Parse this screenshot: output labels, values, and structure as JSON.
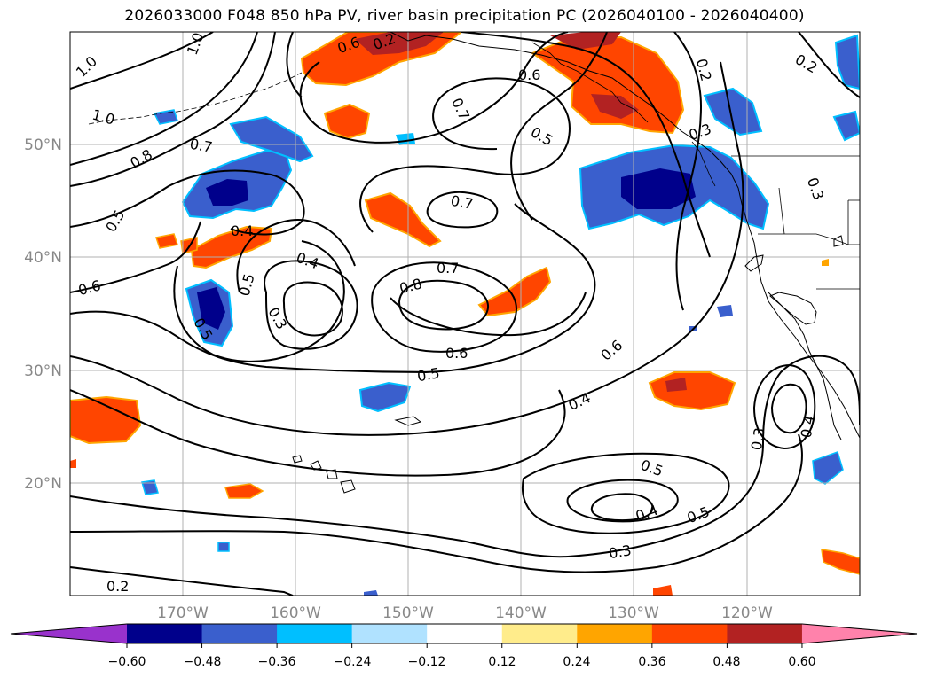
{
  "title": "2026033000 F048 850 hPa PV, river basin precipitation PC (2026040100 - 2026040400)",
  "map": {
    "lat_labels": [
      "50°N",
      "40°N",
      "30°N",
      "20°N"
    ],
    "lon_labels": [
      "170°W",
      "160°W",
      "150°W",
      "140°W",
      "130°W",
      "120°W"
    ],
    "contour_labels": [
      {
        "text": "1.0"
      },
      {
        "text": "1.0"
      },
      {
        "text": "1.0"
      },
      {
        "text": "0.6"
      },
      {
        "text": "0.8"
      },
      {
        "text": "0.7"
      },
      {
        "text": "0.6"
      },
      {
        "text": "0.7"
      },
      {
        "text": "0.5"
      },
      {
        "text": "0.2"
      },
      {
        "text": "0.2"
      },
      {
        "text": "0.3"
      },
      {
        "text": "0.3"
      },
      {
        "text": "0.5"
      },
      {
        "text": "0.4"
      },
      {
        "text": "0.7"
      },
      {
        "text": "0.4"
      },
      {
        "text": "0.8"
      },
      {
        "text": "0.7"
      },
      {
        "text": "0.6"
      },
      {
        "text": "0.5"
      },
      {
        "text": "0.3"
      },
      {
        "text": "0.5"
      },
      {
        "text": "0.6"
      },
      {
        "text": "0.6"
      },
      {
        "text": "0.5"
      },
      {
        "text": "0.4"
      },
      {
        "text": "0.3"
      },
      {
        "text": "0.4"
      },
      {
        "text": "0.5"
      },
      {
        "text": "0.4"
      },
      {
        "text": "0.5"
      },
      {
        "text": "0.3"
      },
      {
        "text": "0.2"
      },
      {
        "text": "0.2"
      }
    ]
  },
  "colorbar": {
    "tick_labels": [
      "−0.60",
      "−0.48",
      "−0.36",
      "−0.24",
      "−0.12",
      "0.12",
      "0.24",
      "0.36",
      "0.48",
      "0.60"
    ],
    "colors": [
      "#9932cc",
      "#00008b",
      "#3a5fcd",
      "#00bfff",
      "#b0e2ff",
      "#ffffff",
      "#ffec8b",
      "#ffa500",
      "#ff4500",
      "#b22222",
      "#ff82ab"
    ]
  },
  "colors": {
    "contour": "#000000",
    "grid": "#b0b0b0",
    "coast": "#000000"
  }
}
